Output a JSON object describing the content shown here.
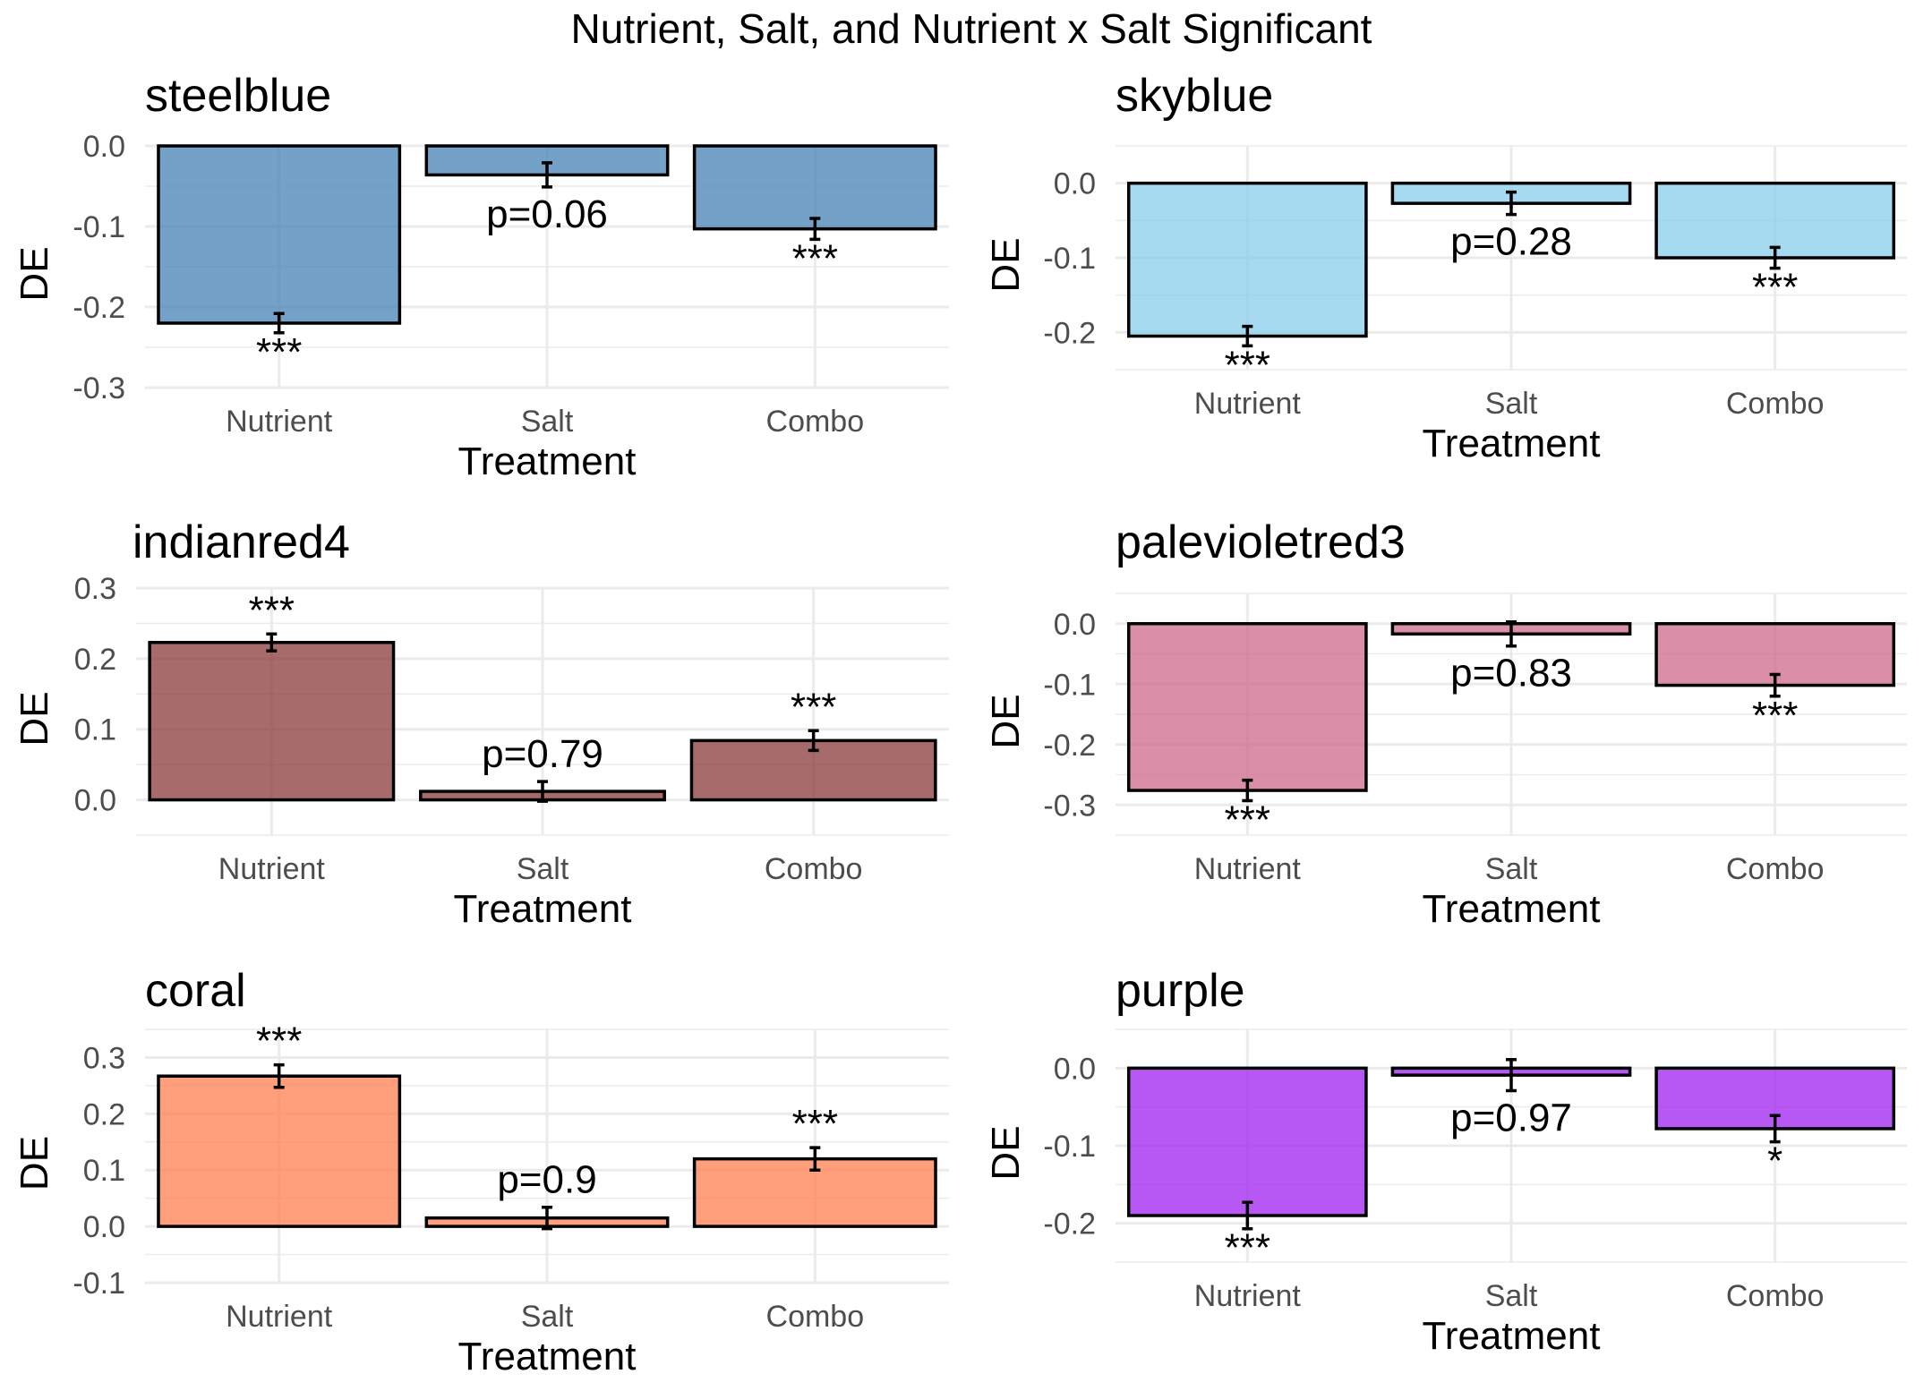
{
  "title": "Nutrient, Salt, and Nutrient x Salt Significant",
  "chart_data": [
    {
      "type": "bar",
      "title": "steelblue",
      "fill": "#4682B4",
      "xlabel": "Treatment",
      "ylabel": "DE",
      "categories": [
        "Nutrient",
        "Salt",
        "Combo"
      ],
      "values": [
        -0.22,
        -0.036,
        -0.103
      ],
      "error": [
        0.012,
        0.015,
        0.013
      ],
      "labels": [
        "***",
        "p=0.06",
        "***"
      ],
      "ylim": [
        -0.3,
        0.0
      ],
      "yticks": [
        0.0,
        -0.1,
        -0.2,
        -0.3
      ],
      "ytick_labels": [
        "0.0",
        "-0.1",
        "-0.2",
        "-0.3"
      ],
      "grid": true
    },
    {
      "type": "bar",
      "title": "skyblue",
      "fill": "#87CEEB",
      "xlabel": "Treatment",
      "ylabel": "DE",
      "categories": [
        "Nutrient",
        "Salt",
        "Combo"
      ],
      "values": [
        -0.205,
        -0.027,
        -0.1
      ],
      "error": [
        0.013,
        0.015,
        0.014
      ],
      "labels": [
        "***",
        "p=0.28",
        "***"
      ],
      "ylim": [
        -0.25,
        0.05
      ],
      "yticks": [
        0.0,
        -0.1,
        -0.2
      ],
      "ytick_labels": [
        "0.0",
        "-0.1",
        "-0.2"
      ],
      "grid": true
    },
    {
      "type": "bar",
      "title": "indianred4",
      "fill": "#8B3A3A",
      "xlabel": "Treatment",
      "ylabel": "DE",
      "categories": [
        "Nutrient",
        "Salt",
        "Combo"
      ],
      "values": [
        0.223,
        0.012,
        0.084
      ],
      "error": [
        0.012,
        0.014,
        0.014
      ],
      "labels": [
        "***",
        "p=0.79",
        "***"
      ],
      "ylim": [
        -0.05,
        0.3
      ],
      "yticks": [
        0.3,
        0.2,
        0.1,
        0.0
      ],
      "ytick_labels": [
        "0.3",
        "0.2",
        "0.1",
        "0.0"
      ],
      "grid": true
    },
    {
      "type": "bar",
      "title": "palevioletred3",
      "fill": "#CD6889",
      "xlabel": "Treatment",
      "ylabel": "DE",
      "categories": [
        "Nutrient",
        "Salt",
        "Combo"
      ],
      "values": [
        -0.276,
        -0.017,
        -0.102
      ],
      "error": [
        0.017,
        0.02,
        0.018
      ],
      "labels": [
        "***",
        "p=0.83",
        "***"
      ],
      "ylim": [
        -0.35,
        0.05
      ],
      "yticks": [
        0.0,
        -0.1,
        -0.2,
        -0.3
      ],
      "ytick_labels": [
        "0.0",
        "-0.1",
        "-0.2",
        "-0.3"
      ],
      "grid": true
    },
    {
      "type": "bar",
      "title": "coral",
      "fill": "#FF7F50",
      "xlabel": "Treatment",
      "ylabel": "DE",
      "categories": [
        "Nutrient",
        "Salt",
        "Combo"
      ],
      "values": [
        0.267,
        0.015,
        0.12
      ],
      "error": [
        0.02,
        0.019,
        0.02
      ],
      "labels": [
        "***",
        "p=0.9",
        "***"
      ],
      "ylim": [
        -0.1,
        0.35
      ],
      "yticks": [
        0.3,
        0.2,
        0.1,
        0.0,
        -0.1
      ],
      "ytick_labels": [
        "0.3",
        "0.2",
        "0.1",
        "0.0",
        "-0.1"
      ],
      "grid": true
    },
    {
      "type": "bar",
      "title": "purple",
      "fill": "#A020F0",
      "xlabel": "Treatment",
      "ylabel": "DE",
      "categories": [
        "Nutrient",
        "Salt",
        "Combo"
      ],
      "values": [
        -0.19,
        -0.009,
        -0.078
      ],
      "error": [
        0.017,
        0.02,
        0.017
      ],
      "labels": [
        "***",
        "p=0.97",
        "*"
      ],
      "ylim": [
        -0.25,
        0.05
      ],
      "yticks": [
        0.0,
        -0.1,
        -0.2
      ],
      "ytick_labels": [
        "0.0",
        "-0.1",
        "-0.2"
      ],
      "grid": true
    }
  ]
}
